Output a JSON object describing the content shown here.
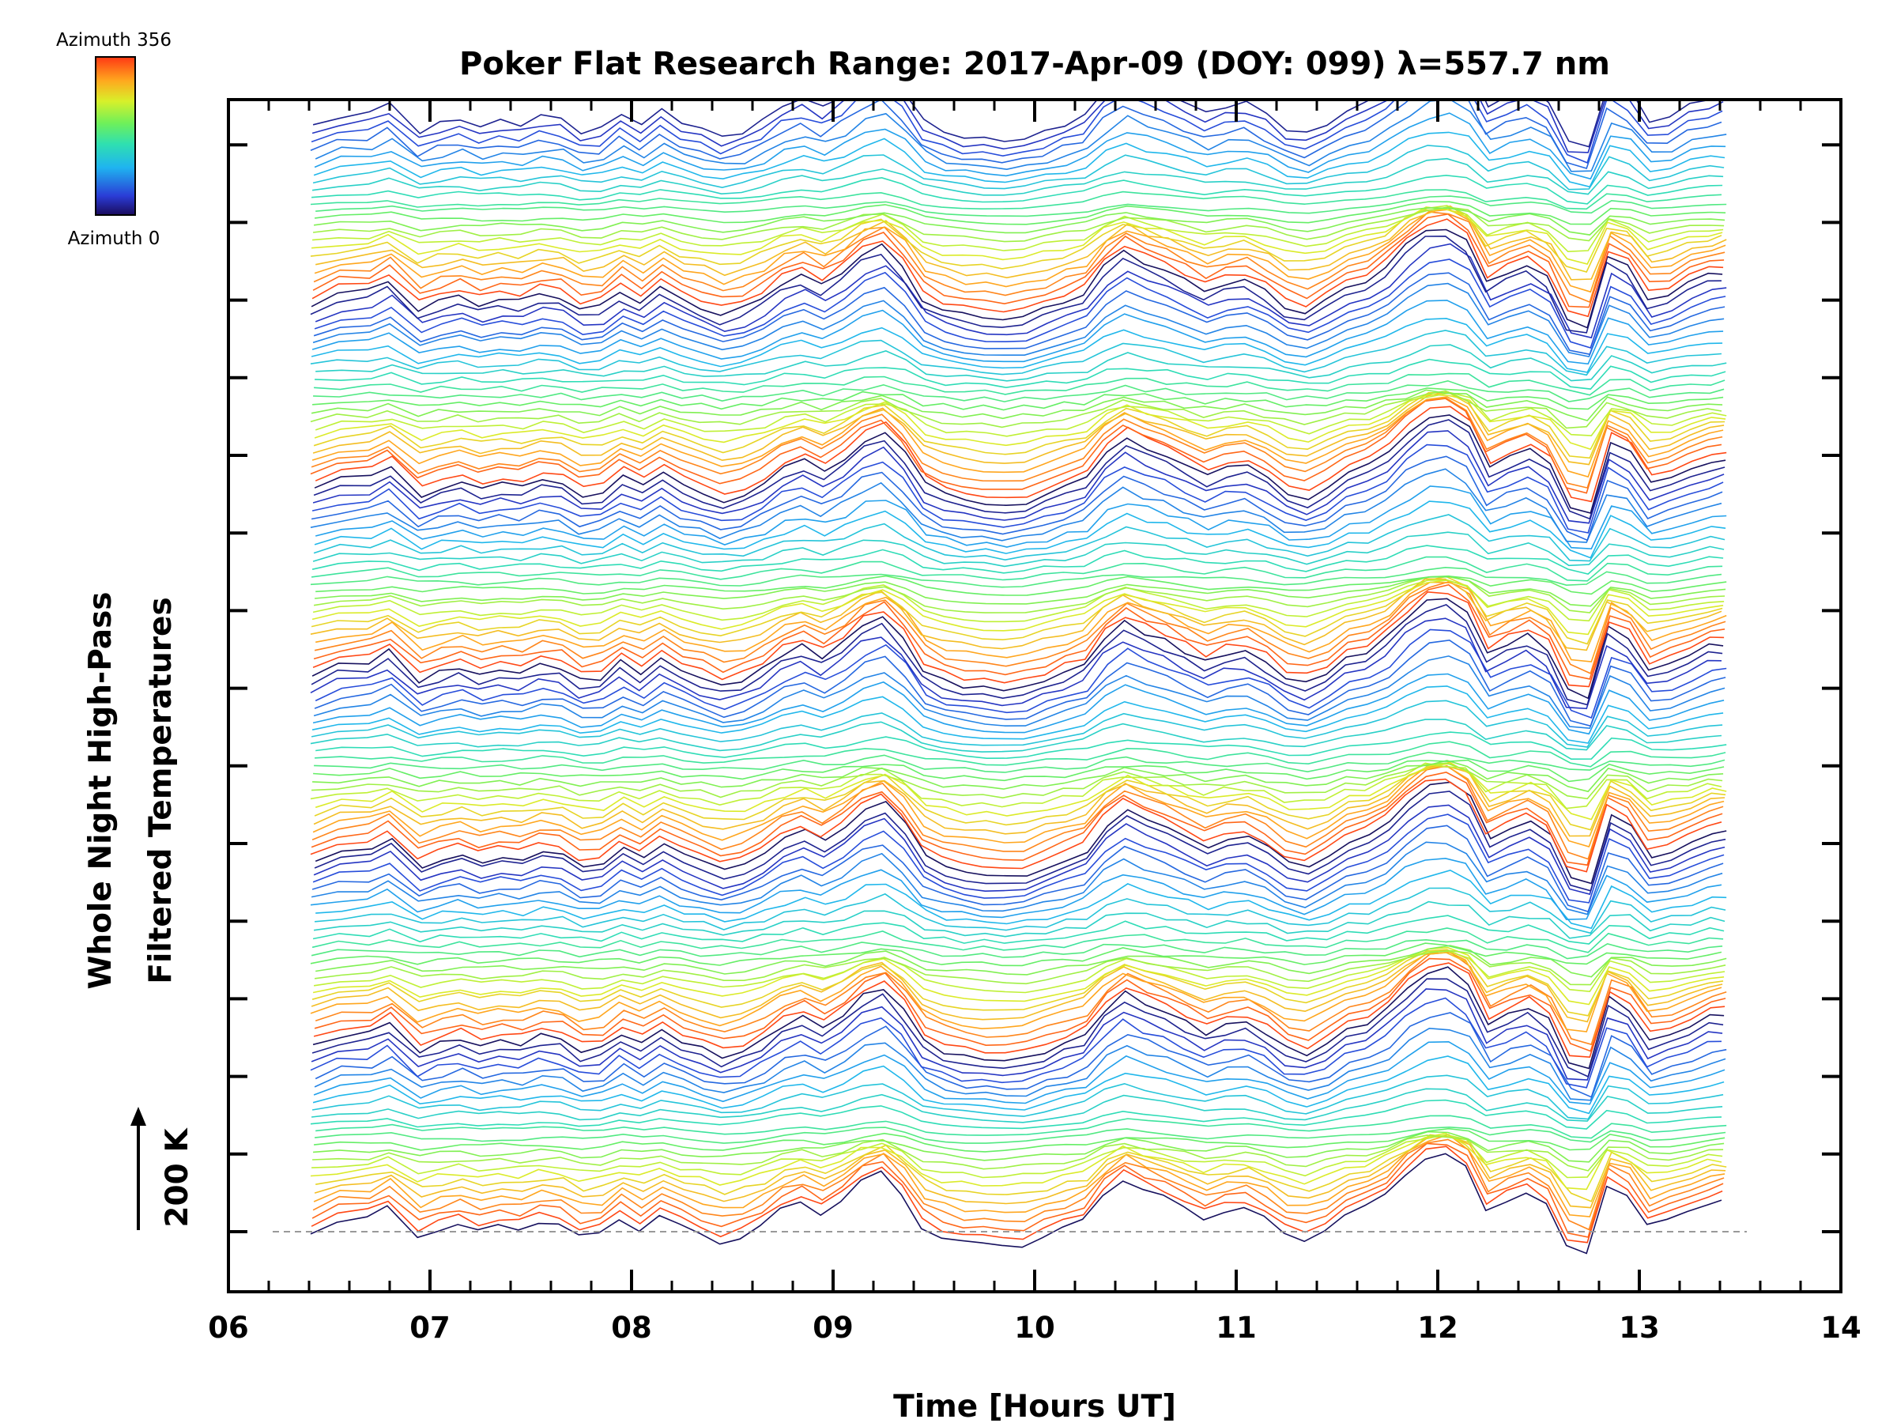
{
  "chart_data": {
    "type": "line",
    "title": "Poker Flat Research Range: 2017-Apr-09 (DOY: 099) λ=557.7 nm",
    "xlabel": "Time [Hours UT]",
    "ylabel": [
      "Whole Night High-Pass",
      "Filtered Temperatures"
    ],
    "xlim": [
      6,
      14
    ],
    "x_ticks": [
      "06",
      "07",
      "08",
      "09",
      "10",
      "11",
      "12",
      "13",
      "14"
    ],
    "scale_bar_label": "200 K",
    "colorbar": {
      "top_label": "Azimuth 356",
      "bottom_label": "Azimuth 0",
      "min": 0,
      "max": 356
    },
    "series_count": 144,
    "x_range": [
      6.42,
      13.42
    ],
    "base_profile": {
      "x": [
        6.42,
        6.55,
        6.7,
        6.8,
        6.95,
        7.05,
        7.15,
        7.25,
        7.35,
        7.45,
        7.55,
        7.65,
        7.75,
        7.85,
        7.95,
        8.05,
        8.15,
        8.25,
        8.35,
        8.45,
        8.55,
        8.65,
        8.75,
        8.85,
        8.95,
        9.05,
        9.15,
        9.25,
        9.35,
        9.45,
        9.55,
        9.65,
        9.75,
        9.85,
        9.95,
        10.05,
        10.15,
        10.25,
        10.35,
        10.45,
        10.55,
        10.65,
        10.75,
        10.85,
        10.95,
        11.05,
        11.15,
        11.25,
        11.35,
        11.45,
        11.55,
        11.65,
        11.75,
        11.85,
        11.95,
        12.05,
        12.15,
        12.25,
        12.35,
        12.45,
        12.55,
        12.65,
        12.75,
        12.85,
        12.95,
        13.05,
        13.15,
        13.25,
        13.35,
        13.42
      ],
      "y": [
        0,
        20,
        25,
        45,
        -10,
        5,
        15,
        0,
        10,
        5,
        20,
        15,
        -10,
        -5,
        25,
        5,
        30,
        10,
        -5,
        -20,
        -10,
        10,
        40,
        55,
        35,
        60,
        95,
        110,
        70,
        10,
        -10,
        -20,
        -25,
        -25,
        -25,
        -10,
        5,
        20,
        70,
        100,
        80,
        65,
        45,
        25,
        40,
        45,
        25,
        -5,
        -15,
        5,
        30,
        45,
        70,
        110,
        140,
        145,
        120,
        40,
        60,
        75,
        50,
        -30,
        -40,
        90,
        70,
        10,
        20,
        40,
        55,
        60
      ]
    },
    "group_period": 24
  }
}
